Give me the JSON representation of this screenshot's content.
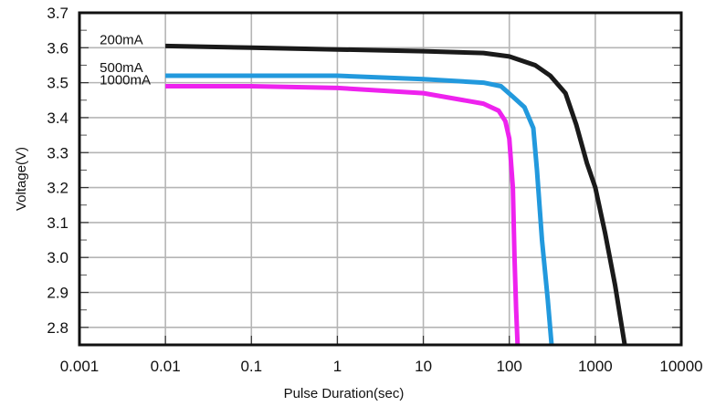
{
  "chart_data": {
    "type": "line",
    "title": "",
    "xlabel": "Pulse Duration(sec)",
    "ylabel": "Voltage(V)",
    "x_scale": "log",
    "xlim": [
      0.001,
      10000
    ],
    "ylim": [
      2.75,
      3.7
    ],
    "x_ticks": [
      0.001,
      0.01,
      0.1,
      1,
      10,
      100,
      1000,
      10000
    ],
    "x_tick_labels": [
      "0.001",
      "0.01",
      "0.1",
      "1",
      "10",
      "100",
      "1000",
      "10000"
    ],
    "y_ticks": [
      2.8,
      2.9,
      3.0,
      3.1,
      3.2,
      3.3,
      3.4,
      3.5,
      3.6,
      3.7
    ],
    "y_tick_labels": [
      "2.8",
      "2.9",
      "3.0",
      "3.1",
      "3.2",
      "3.3",
      "3.4",
      "3.5",
      "3.6",
      "3.7"
    ],
    "grid": true,
    "legend": "labels at left end of each curve",
    "series": [
      {
        "name": "200mA",
        "color": "#1a1a1a",
        "points": [
          [
            0.01,
            3.605
          ],
          [
            0.1,
            3.6
          ],
          [
            1,
            3.595
          ],
          [
            10,
            3.59
          ],
          [
            50,
            3.585
          ],
          [
            100,
            3.575
          ],
          [
            200,
            3.55
          ],
          [
            300,
            3.52
          ],
          [
            450,
            3.47
          ],
          [
            600,
            3.38
          ],
          [
            800,
            3.27
          ],
          [
            1000,
            3.2
          ],
          [
            1300,
            3.07
          ],
          [
            1700,
            2.92
          ],
          [
            2200,
            2.75
          ]
        ]
      },
      {
        "name": "500mA",
        "color": "#2299dd",
        "points": [
          [
            0.01,
            3.52
          ],
          [
            0.1,
            3.52
          ],
          [
            1,
            3.52
          ],
          [
            10,
            3.51
          ],
          [
            50,
            3.5
          ],
          [
            80,
            3.49
          ],
          [
            110,
            3.46
          ],
          [
            150,
            3.43
          ],
          [
            190,
            3.37
          ],
          [
            210,
            3.25
          ],
          [
            240,
            3.05
          ],
          [
            280,
            2.88
          ],
          [
            310,
            2.75
          ]
        ]
      },
      {
        "name": "1000mA",
        "color": "#ee22ee",
        "points": [
          [
            0.01,
            3.49
          ],
          [
            0.1,
            3.49
          ],
          [
            1,
            3.485
          ],
          [
            10,
            3.47
          ],
          [
            50,
            3.44
          ],
          [
            75,
            3.42
          ],
          [
            90,
            3.39
          ],
          [
            100,
            3.34
          ],
          [
            110,
            3.2
          ],
          [
            115,
            3.0
          ],
          [
            120,
            2.85
          ],
          [
            125,
            2.75
          ]
        ]
      }
    ]
  }
}
